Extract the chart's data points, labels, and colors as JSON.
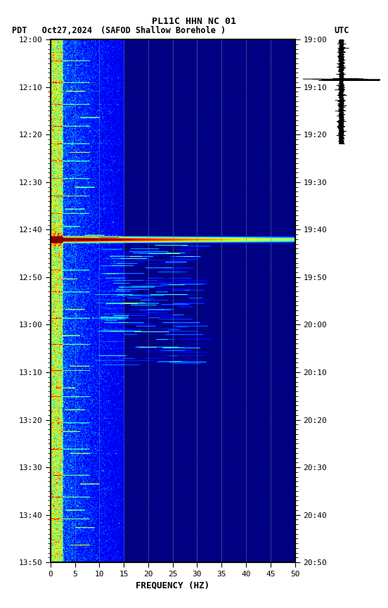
{
  "title_line1": "PL11C HHN NC 01",
  "title_line2_left": "PDT   Oct27,2024",
  "title_line2_center": "(SAFOD Shallow Borehole )",
  "title_line2_right": "UTC",
  "left_time_labels": [
    "12:00",
    "12:10",
    "12:20",
    "12:30",
    "12:40",
    "12:50",
    "13:00",
    "13:10",
    "13:20",
    "13:30",
    "13:40",
    "13:50"
  ],
  "right_time_labels": [
    "19:00",
    "19:10",
    "19:20",
    "19:30",
    "19:40",
    "19:50",
    "20:00",
    "20:10",
    "20:20",
    "20:30",
    "20:40",
    "20:50"
  ],
  "freq_ticks": [
    0,
    5,
    10,
    15,
    20,
    25,
    30,
    35,
    40,
    45,
    50
  ],
  "xlabel": "FREQUENCY (HZ)",
  "xlim": [
    0,
    50
  ],
  "spectrogram_bg_color": "#00008B",
  "border_color": "#8B0000",
  "waveform_color": "#000000",
  "background_color": "#FFFFFF",
  "num_time_steps": 1200,
  "num_freq_steps": 500,
  "random_seed": 42
}
